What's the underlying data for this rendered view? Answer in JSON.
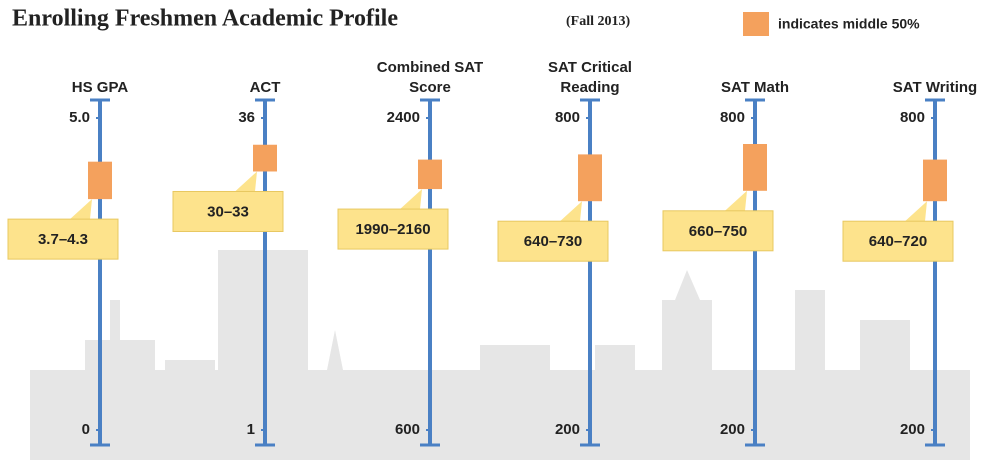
{
  "header": {
    "title": "Enrolling Freshmen Academic Profile",
    "subtitle": "(Fall 2013)",
    "legend": "indicates middle 50%",
    "legend_color": "#f4a15d"
  },
  "chart_data": [
    {
      "type": "range",
      "title": "HS GPA",
      "ylim": [
        0,
        5
      ],
      "yticks": [
        0,
        {
          "value": 5,
          "label": "5.0"
        }
      ],
      "low": 3.7,
      "high": 4.3,
      "range_label": "3.7–4.3",
      "color": "#f4a15d"
    },
    {
      "type": "range",
      "title": "ACT",
      "ylim": [
        1,
        36
      ],
      "yticks": [
        1,
        36
      ],
      "low": 30,
      "high": 33,
      "range_label": "30–33",
      "color": "#f4a15d"
    },
    {
      "type": "range",
      "title": "Combined SAT Score",
      "ylim": [
        600,
        2400
      ],
      "yticks": [
        600,
        2400
      ],
      "low": 1990,
      "high": 2160,
      "range_label": "1990–2160",
      "color": "#f4a15d"
    },
    {
      "type": "range",
      "title": "SAT Critical Reading",
      "ylim": [
        200,
        800
      ],
      "yticks": [
        200,
        800
      ],
      "low": 640,
      "high": 730,
      "range_label": "640–730",
      "color": "#f4a15d"
    },
    {
      "type": "range",
      "title": "SAT Math",
      "ylim": [
        200,
        800
      ],
      "yticks": [
        200,
        800
      ],
      "low": 660,
      "high": 750,
      "range_label": "660–750",
      "color": "#f4a15d"
    },
    {
      "type": "range",
      "title": "SAT Writing",
      "ylim": [
        200,
        800
      ],
      "yticks": [
        200,
        800
      ],
      "low": 640,
      "high": 720,
      "range_label": "640–720",
      "color": "#f4a15d"
    }
  ]
}
